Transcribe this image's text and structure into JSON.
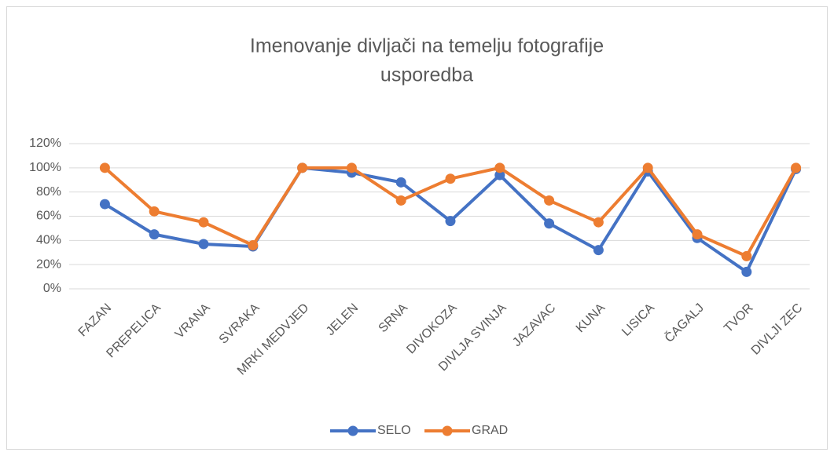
{
  "chart_data": {
    "type": "line",
    "title": [
      "Imenovanje divljači na temelju fotografije",
      "usporedba"
    ],
    "categories": [
      "FAZAN",
      "PREPELICA",
      "VRANA",
      "SVRAKA",
      "MRKI MEDVJED",
      "JELEN",
      "SRNA",
      "DIVOKOZA",
      "DIVLJA SVINJA",
      "JAZAVAC",
      "KUNA",
      "LISICA",
      "ČAGALJ",
      "TVOR",
      "DIVLJI ZEC"
    ],
    "series": [
      {
        "name": "SELO",
        "color": "#4472c4",
        "values": [
          70,
          45,
          37,
          35,
          100,
          96,
          88,
          56,
          94,
          54,
          32,
          97,
          42,
          14,
          99
        ]
      },
      {
        "name": "GRAD",
        "color": "#ed7d31",
        "values": [
          100,
          64,
          55,
          36,
          100,
          100,
          73,
          91,
          100,
          73,
          55,
          100,
          45,
          27,
          100
        ]
      }
    ],
    "ylim": [
      0,
      120
    ],
    "yticks": [
      {
        "value": 0,
        "label": "0%"
      },
      {
        "value": 20,
        "label": "20%"
      },
      {
        "value": 40,
        "label": "40%"
      },
      {
        "value": 60,
        "label": "60%"
      },
      {
        "value": 80,
        "label": "80%"
      },
      {
        "value": 100,
        "label": "100%"
      },
      {
        "value": 120,
        "label": "120%"
      }
    ],
    "grid": true,
    "legend": "bottom"
  }
}
